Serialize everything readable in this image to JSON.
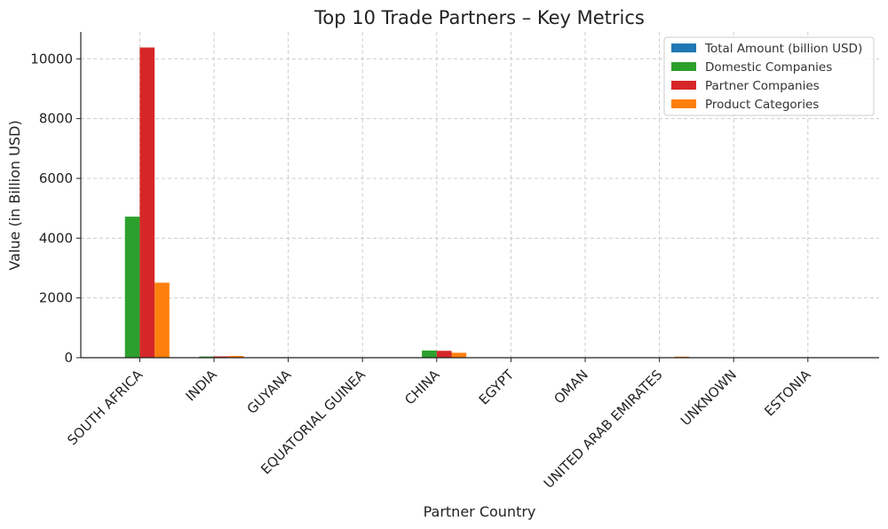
{
  "chart_data": {
    "type": "bar",
    "title": "Top 10 Trade Partners – Key Metrics",
    "xlabel": "Partner Country",
    "ylabel": "Value (in Billion USD)",
    "ylim": [
      0,
      10900
    ],
    "yticks": [
      0,
      2000,
      4000,
      6000,
      8000,
      10000
    ],
    "grid": true,
    "legend_position": "top-right",
    "categories": [
      "SOUTH AFRICA",
      "INDIA",
      "GUYANA",
      "EQUATORIAL GUINEA",
      "CHINA",
      "EGYPT",
      "OMAN",
      "UNITED ARAB EMIRATES",
      "UNKNOWN",
      "ESTONIA"
    ],
    "series": [
      {
        "name": "Total Amount (billion USD)",
        "color": "#1f77b4",
        "values": [
          3,
          1,
          0.5,
          0.3,
          1,
          0.2,
          0.2,
          0.3,
          0.1,
          0.1
        ]
      },
      {
        "name": "Domestic Companies",
        "color": "#2ca02c",
        "values": [
          4720,
          40,
          5,
          2,
          240,
          3,
          2,
          5,
          1,
          1
        ]
      },
      {
        "name": "Partner Companies",
        "color": "#d62728",
        "values": [
          10380,
          45,
          4,
          2,
          230,
          4,
          3,
          10,
          2,
          1
        ]
      },
      {
        "name": "Product Categories",
        "color": "#ff7f0e",
        "values": [
          2510,
          60,
          6,
          3,
          165,
          5,
          4,
          35,
          2,
          2
        ]
      }
    ]
  }
}
